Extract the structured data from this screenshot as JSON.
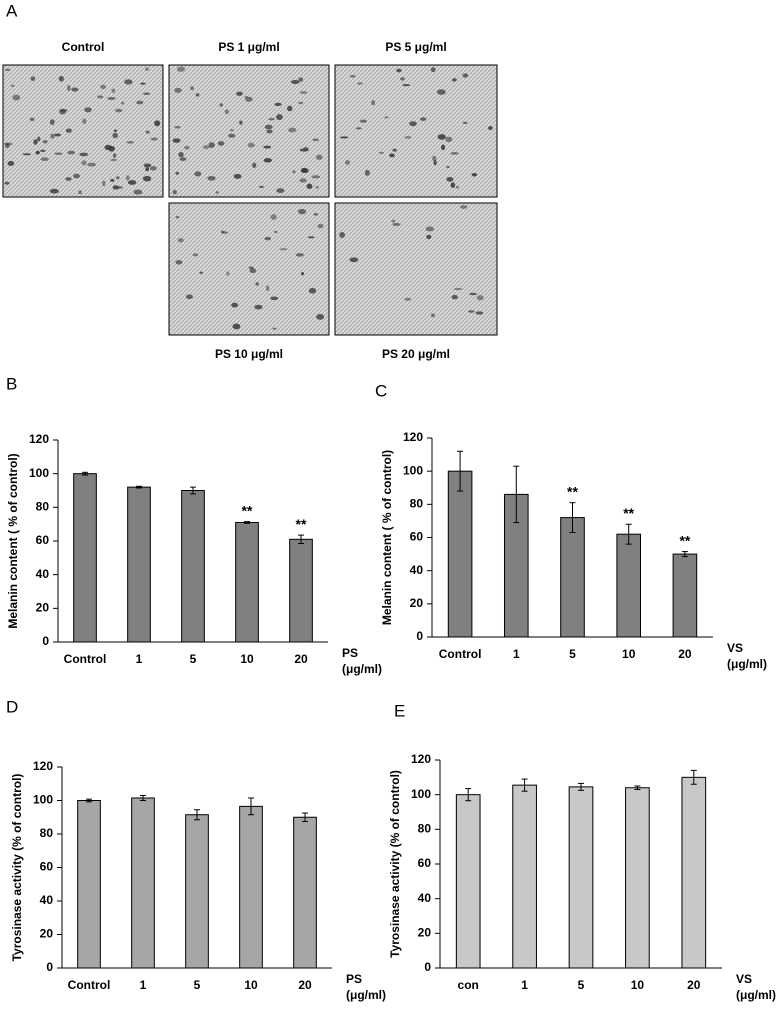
{
  "panel_a": {
    "label": "A",
    "images": [
      {
        "caption": "Control"
      },
      {
        "caption": "PS 1 μg/ml"
      },
      {
        "caption": "PS 5 μg/ml"
      },
      {
        "caption": "PS 10 μg/ml"
      },
      {
        "caption": "PS 20 μg/ml"
      }
    ]
  },
  "chart_data": [
    {
      "type": "bar",
      "panel": "B",
      "ylabel": "Melanin content ( % of control)",
      "xlabel": "PS",
      "xlabel_unit": "(μg/ml)",
      "categories": [
        "Control",
        "1",
        "5",
        "10",
        "20"
      ],
      "values": [
        100,
        92,
        90,
        71,
        61
      ],
      "errors": [
        0.8,
        0.5,
        2,
        0.5,
        2.5
      ],
      "significance": [
        null,
        null,
        null,
        "**",
        "**"
      ],
      "color": "#808080",
      "ylim": [
        0,
        120
      ],
      "yticks": [
        0,
        20,
        40,
        60,
        80,
        100,
        120
      ]
    },
    {
      "type": "bar",
      "panel": "C",
      "ylabel": "Melanin content ( % of control)",
      "xlabel": "VS",
      "xlabel_unit": "(μg/ml)",
      "categories": [
        "Control",
        "1",
        "5",
        "10",
        "20"
      ],
      "values": [
        100,
        86,
        72,
        62,
        50
      ],
      "errors": [
        12,
        17,
        9,
        6,
        1.5
      ],
      "significance": [
        null,
        null,
        "**",
        "**",
        "**"
      ],
      "color": "#808080",
      "ylim": [
        0,
        120
      ],
      "yticks": [
        0,
        20,
        40,
        60,
        80,
        100,
        120
      ]
    },
    {
      "type": "bar",
      "panel": "D",
      "ylabel": "Tyrosinase activity (% of control)",
      "xlabel": "PS",
      "xlabel_unit": "(μg/ml)",
      "categories": [
        "Control",
        "1",
        "5",
        "10",
        "20"
      ],
      "values": [
        100,
        101.5,
        91.5,
        96.5,
        90
      ],
      "errors": [
        0.8,
        1.5,
        3,
        5,
        2.5
      ],
      "color": "#a6a6a6",
      "ylim": [
        0,
        120
      ],
      "yticks": [
        0,
        20,
        40,
        60,
        80,
        100,
        120
      ]
    },
    {
      "type": "bar",
      "panel": "E",
      "ylabel": "Tyrosinase activity (% of control)",
      "xlabel": "VS",
      "xlabel_unit": "(μg/ml)",
      "categories": [
        "con",
        "1",
        "5",
        "10",
        "20"
      ],
      "values": [
        100,
        105.5,
        104.5,
        104,
        110
      ],
      "errors": [
        3.5,
        3.5,
        2,
        1,
        4
      ],
      "color": "#c8c8c8",
      "ylim": [
        0,
        120
      ],
      "yticks": [
        0,
        20,
        40,
        60,
        80,
        100,
        120
      ]
    }
  ]
}
